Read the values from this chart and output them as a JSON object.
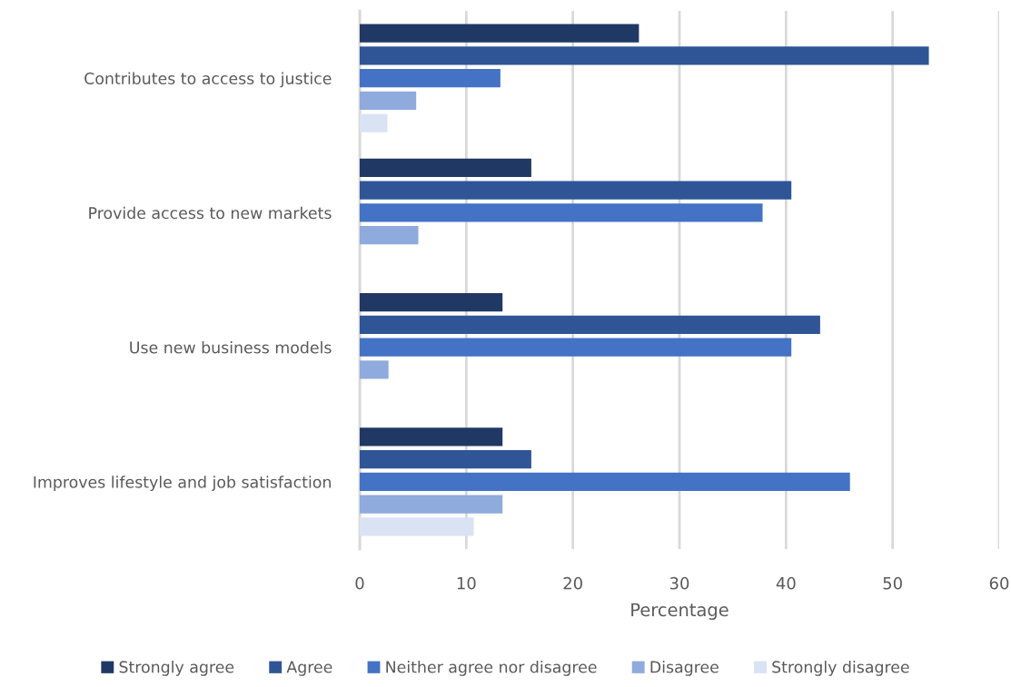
{
  "chart_data": {
    "type": "bar",
    "orientation": "horizontal",
    "categories": [
      "Contributes to access to justice",
      "Provide access to new markets",
      "Use new business models",
      "Improves lifestyle and job satisfaction"
    ],
    "series": [
      {
        "name": "Strongly agree",
        "color": "#203864",
        "values": [
          26.2,
          16.1,
          13.4,
          13.4
        ]
      },
      {
        "name": "Agree",
        "color": "#2f5597",
        "values": [
          53.4,
          40.5,
          43.2,
          16.1
        ]
      },
      {
        "name": "Neither agree nor disagree",
        "color": "#4472c4",
        "values": [
          13.2,
          37.8,
          40.5,
          46.0
        ]
      },
      {
        "name": "Disagree",
        "color": "#8faadc",
        "values": [
          5.3,
          5.5,
          2.7,
          13.4
        ]
      },
      {
        "name": "Strongly disagree",
        "color": "#dae3f3",
        "values": [
          2.6,
          null,
          null,
          10.7
        ]
      }
    ],
    "xlabel": "Percentage",
    "xlim": [
      0,
      60
    ],
    "xticks": [
      0,
      10,
      20,
      30,
      40,
      50,
      60
    ],
    "grid": "x",
    "legend": "bottom"
  }
}
